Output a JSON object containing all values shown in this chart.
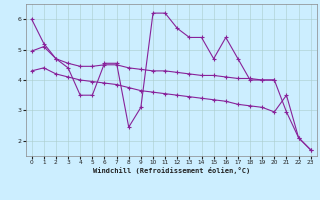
{
  "bg_color": "#cceeff",
  "line_color": "#882299",
  "grid_color": "#aacccc",
  "xlim": [
    -0.5,
    23.5
  ],
  "ylim": [
    1.5,
    6.5
  ],
  "yticks": [
    2,
    3,
    4,
    5,
    6
  ],
  "xticks": [
    0,
    1,
    2,
    3,
    4,
    5,
    6,
    7,
    8,
    9,
    10,
    11,
    12,
    13,
    14,
    15,
    16,
    17,
    18,
    19,
    20,
    21,
    22,
    23
  ],
  "xlabel": "Windchill (Refroidissement éolien,°C)",
  "line1_x": [
    0,
    1,
    2,
    3,
    4,
    5,
    6,
    7,
    8,
    9,
    10,
    11,
    12,
    13,
    14,
    15,
    16,
    17,
    18,
    19,
    20
  ],
  "line1_y": [
    6.0,
    5.2,
    4.7,
    4.4,
    3.5,
    3.5,
    4.55,
    4.55,
    2.45,
    3.1,
    6.2,
    6.2,
    5.7,
    5.4,
    5.4,
    4.7,
    5.4,
    4.7,
    4.0,
    4.0,
    4.0
  ],
  "line2_x": [
    0,
    1,
    2,
    3,
    4,
    5,
    6,
    7,
    8,
    9,
    10,
    11,
    12,
    13,
    14,
    15,
    16,
    17,
    18,
    19,
    20,
    21,
    22,
    23
  ],
  "line2_y": [
    4.95,
    5.1,
    4.7,
    4.55,
    4.45,
    4.45,
    4.5,
    4.5,
    4.4,
    4.35,
    4.3,
    4.3,
    4.25,
    4.2,
    4.15,
    4.15,
    4.1,
    4.05,
    4.05,
    4.0,
    4.0,
    2.95,
    2.1,
    1.7
  ],
  "line3_x": [
    0,
    1,
    2,
    3,
    4,
    5,
    6,
    7,
    8,
    9,
    10,
    11,
    12,
    13,
    14,
    15,
    16,
    17,
    18,
    19,
    20,
    21,
    22,
    23
  ],
  "line3_y": [
    4.3,
    4.4,
    4.2,
    4.1,
    4.0,
    3.95,
    3.9,
    3.85,
    3.75,
    3.65,
    3.6,
    3.55,
    3.5,
    3.45,
    3.4,
    3.35,
    3.3,
    3.2,
    3.15,
    3.1,
    2.95,
    3.5,
    2.1,
    1.7
  ]
}
